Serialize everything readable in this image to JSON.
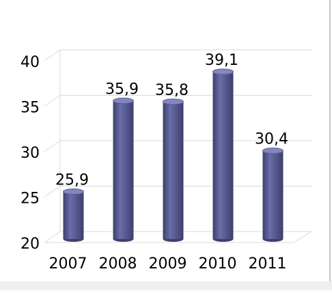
{
  "chart_data": {
    "type": "bar",
    "title": "",
    "xlabel": "",
    "ylabel": "",
    "categories": [
      "2007",
      "2008",
      "2009",
      "2010",
      "2011"
    ],
    "series": [
      {
        "values": [
          25.9,
          35.9,
          35.8,
          39.1,
          30.4
        ],
        "labels": [
          "25,9",
          "35,9",
          "35,8",
          "39,1",
          "30,4"
        ]
      }
    ],
    "ylim": [
      20,
      40
    ],
    "yticks": [
      20,
      25,
      30,
      35,
      40
    ],
    "grid": true,
    "legend": "none",
    "style": "3d-cylinder",
    "colors": {
      "bar_side": "#5b5e95",
      "bar_mid": "#6a6da8",
      "bar_dark": "#3d3f6c",
      "bar_top": "#8487bf",
      "grid": "#d9d9d9"
    }
  }
}
